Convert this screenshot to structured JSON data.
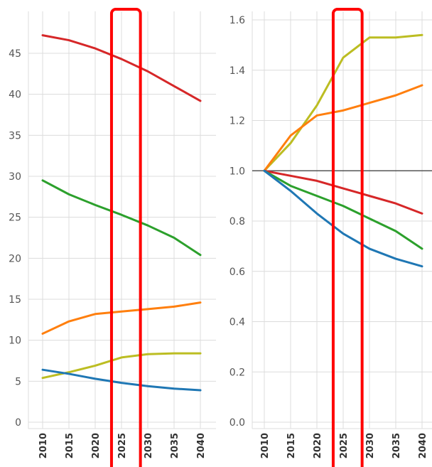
{
  "chart_data": [
    {
      "type": "line",
      "x": [
        "2010",
        "2015",
        "2020",
        "2025",
        "2030",
        "2035",
        "2040"
      ],
      "ylim": [
        0,
        48
      ],
      "yticks": [
        "0",
        "5",
        "10",
        "15",
        "20",
        "25",
        "30",
        "35",
        "40",
        "45"
      ],
      "ytick_values": [
        0,
        5,
        10,
        15,
        20,
        25,
        30,
        35,
        40,
        45
      ],
      "grid": true,
      "series": [
        {
          "color": "#d62728",
          "values": [
            47.2,
            46.6,
            45.6,
            44.3,
            42.8,
            41.0,
            39.2
          ]
        },
        {
          "color": "#2ca02c",
          "values": [
            29.5,
            27.8,
            26.5,
            25.3,
            24.0,
            22.5,
            20.4
          ]
        },
        {
          "color": "#ff7f0e",
          "values": [
            10.8,
            12.3,
            13.2,
            13.5,
            13.8,
            14.1,
            14.6
          ]
        },
        {
          "color": "#bcbd22",
          "values": [
            5.4,
            6.1,
            6.9,
            7.9,
            8.3,
            8.4,
            8.4
          ]
        },
        {
          "color": "#1f77b4",
          "values": [
            6.4,
            5.9,
            5.3,
            4.8,
            4.4,
            4.1,
            3.9
          ]
        }
      ]
    },
    {
      "type": "line",
      "x": [
        "2010",
        "2015",
        "2020",
        "2025",
        "2030",
        "2035",
        "2040"
      ],
      "ylim": [
        0,
        1.6
      ],
      "yticks": [
        "0.0",
        "0.2",
        "0.4",
        "0.6",
        "0.8",
        "1.0",
        "1.2",
        "1.4",
        "1.6"
      ],
      "ytick_values": [
        0,
        0.2,
        0.4,
        0.6,
        0.8,
        1.0,
        1.2,
        1.4,
        1.6
      ],
      "reference_line": 1.0,
      "grid": true,
      "series": [
        {
          "color": "#bcbd22",
          "values": [
            1.0,
            1.11,
            1.26,
            1.45,
            1.53,
            1.53,
            1.54
          ]
        },
        {
          "color": "#ff7f0e",
          "values": [
            1.0,
            1.14,
            1.22,
            1.24,
            1.27,
            1.3,
            1.34
          ]
        },
        {
          "color": "#d62728",
          "values": [
            1.0,
            0.98,
            0.96,
            0.93,
            0.9,
            0.87,
            0.83
          ]
        },
        {
          "color": "#2ca02c",
          "values": [
            1.0,
            0.94,
            0.9,
            0.86,
            0.81,
            0.76,
            0.69
          ]
        },
        {
          "color": "#1f77b4",
          "values": [
            1.0,
            0.92,
            0.83,
            0.75,
            0.69,
            0.65,
            0.62
          ]
        }
      ]
    }
  ],
  "highlight": {
    "category_range": [
      "2020",
      "2025"
    ],
    "color": "#ff0000"
  }
}
